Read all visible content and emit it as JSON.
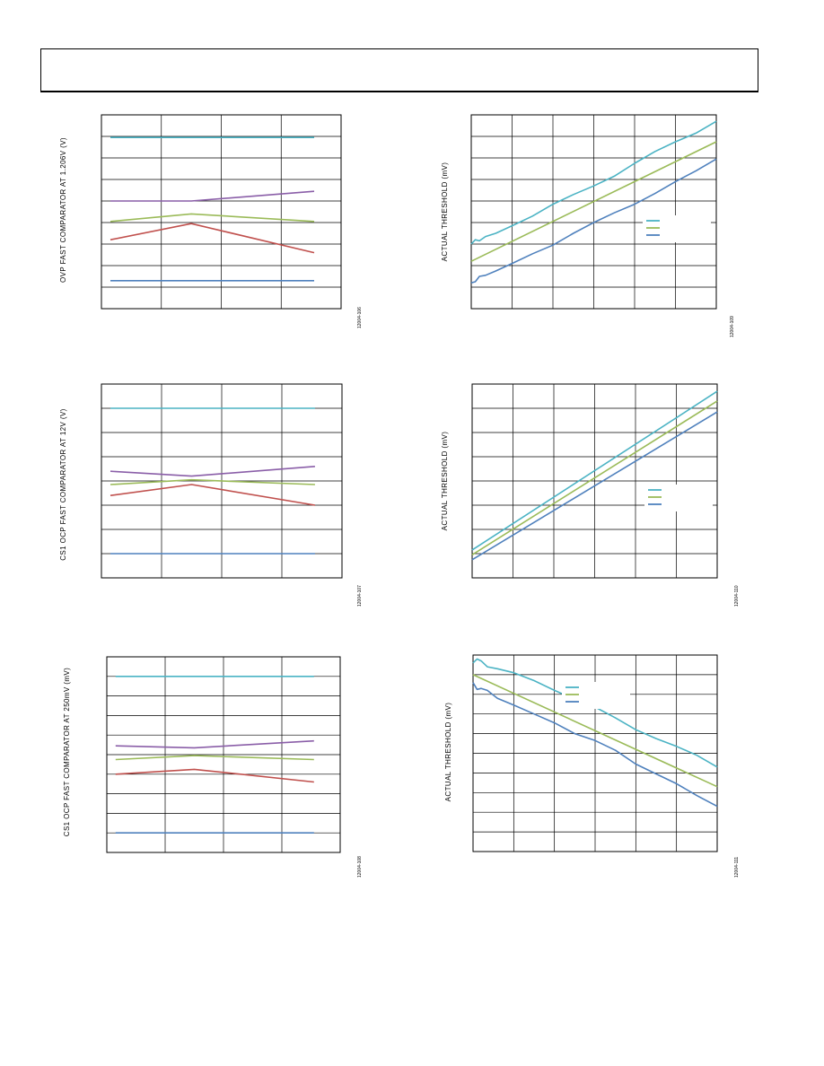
{
  "colors": {
    "teal": "#4bb3c4",
    "purple": "#8a5ea8",
    "green": "#9bbb59",
    "red": "#c0504d",
    "blue": "#4f81bd",
    "grid": "#000000"
  },
  "chart_data": [
    {
      "id": "chart1",
      "type": "line",
      "title": "",
      "xlabel": "",
      "ylabel": "OVP FAST COMPARATOR AT 1.206V (V)",
      "fig_code": "12004-106",
      "xlim": [
        0,
        4
      ],
      "ylim": [
        0,
        9
      ],
      "grid": {
        "x": 4,
        "y": 9
      },
      "legend": null,
      "series": [
        {
          "color": "teal",
          "x": [
            0.15,
            3.55
          ],
          "y": [
            7.95,
            7.95
          ]
        },
        {
          "color": "purple",
          "x": [
            0.15,
            1.5,
            3.55
          ],
          "y": [
            5.0,
            5.0,
            5.45
          ]
        },
        {
          "color": "green",
          "x": [
            0.15,
            1.5,
            3.55
          ],
          "y": [
            4.05,
            4.4,
            4.05
          ]
        },
        {
          "color": "red",
          "x": [
            0.15,
            1.5,
            3.55
          ],
          "y": [
            3.2,
            3.95,
            2.6
          ]
        },
        {
          "color": "blue",
          "x": [
            0.15,
            3.55
          ],
          "y": [
            1.3,
            1.3
          ]
        }
      ]
    },
    {
      "id": "chart2",
      "type": "line",
      "title": "",
      "xlabel": "",
      "ylabel": "ACTUAL THRESHOLD (mV)",
      "fig_code": "12004-109",
      "xlim": [
        0,
        6
      ],
      "ylim": [
        0,
        9
      ],
      "grid": {
        "x": 6,
        "y": 9
      },
      "legend": {
        "placement": "center-right",
        "entries": [
          "teal",
          "green",
          "blue"
        ]
      },
      "series": [
        {
          "color": "teal",
          "x": [
            0,
            0.1,
            0.2,
            0.35,
            0.6,
            1,
            1.5,
            2,
            2.5,
            3,
            3.5,
            4,
            4.5,
            5,
            5.5,
            6
          ],
          "y": [
            3.0,
            3.2,
            3.15,
            3.35,
            3.5,
            3.85,
            4.3,
            4.85,
            5.3,
            5.7,
            6.15,
            6.75,
            7.3,
            7.75,
            8.15,
            8.7
          ]
        },
        {
          "color": "green",
          "x": [
            0,
            6
          ],
          "y": [
            2.2,
            7.75
          ]
        },
        {
          "color": "blue",
          "x": [
            0,
            0.1,
            0.2,
            0.35,
            0.6,
            1,
            1.5,
            2,
            2.5,
            3,
            3.5,
            4,
            4.5,
            5,
            5.5,
            6
          ],
          "y": [
            1.2,
            1.25,
            1.5,
            1.55,
            1.75,
            2.1,
            2.55,
            2.95,
            3.5,
            4.0,
            4.45,
            4.85,
            5.35,
            5.9,
            6.4,
            6.95
          ]
        }
      ]
    },
    {
      "id": "chart3",
      "type": "line",
      "title": "",
      "xlabel": "",
      "ylabel": "CS1 OCP FAST COMPARATOR AT 12V (V)",
      "fig_code": "12004-107",
      "xlim": [
        0,
        4
      ],
      "ylim": [
        0,
        8
      ],
      "grid": {
        "x": 4,
        "y": 8
      },
      "legend": null,
      "series": [
        {
          "color": "teal",
          "x": [
            0.15,
            3.55
          ],
          "y": [
            7.0,
            7.0
          ]
        },
        {
          "color": "purple",
          "x": [
            0.15,
            1.5,
            3.55
          ],
          "y": [
            4.4,
            4.2,
            4.6
          ]
        },
        {
          "color": "green",
          "x": [
            0.15,
            1.5,
            3.55
          ],
          "y": [
            3.85,
            4.05,
            3.85
          ]
        },
        {
          "color": "red",
          "x": [
            0.15,
            1.5,
            3.55
          ],
          "y": [
            3.4,
            3.85,
            3.0
          ]
        },
        {
          "color": "blue",
          "x": [
            0.15,
            3.55
          ],
          "y": [
            1.0,
            1.0
          ]
        }
      ]
    },
    {
      "id": "chart4",
      "type": "line",
      "title": "",
      "xlabel": "",
      "ylabel": "ACTUAL THRESHOLD (mV)",
      "fig_code": "12004-110",
      "xlim": [
        0,
        6
      ],
      "ylim": [
        0,
        8
      ],
      "grid": {
        "x": 6,
        "y": 8
      },
      "legend": {
        "placement": "center-right",
        "entries": [
          "teal",
          "green",
          "blue"
        ]
      },
      "series": [
        {
          "color": "teal",
          "x": [
            0,
            6
          ],
          "y": [
            1.15,
            7.7
          ]
        },
        {
          "color": "green",
          "x": [
            0,
            6
          ],
          "y": [
            0.95,
            7.3
          ]
        },
        {
          "color": "blue",
          "x": [
            0,
            6
          ],
          "y": [
            0.75,
            6.85
          ]
        }
      ]
    },
    {
      "id": "chart5",
      "type": "line",
      "title": "",
      "xlabel": "",
      "ylabel": "CS1 OCP FAST COMPARATOR AT 250mV (mV)",
      "fig_code": "12004-108",
      "xlim": [
        0,
        4
      ],
      "ylim": [
        0,
        10
      ],
      "grid": {
        "x": 4,
        "y": 10
      },
      "legend": null,
      "series": [
        {
          "color": "teal",
          "x": [
            0.15,
            3.55
          ],
          "y": [
            9.0,
            9.0
          ]
        },
        {
          "color": "purple",
          "x": [
            0.15,
            1.5,
            3.55
          ],
          "y": [
            5.45,
            5.35,
            5.7
          ]
        },
        {
          "color": "green",
          "x": [
            0.15,
            1.5,
            3.55
          ],
          "y": [
            4.75,
            4.95,
            4.75
          ]
        },
        {
          "color": "red",
          "x": [
            0.15,
            1.5,
            3.55
          ],
          "y": [
            4.0,
            4.25,
            3.6
          ]
        },
        {
          "color": "blue",
          "x": [
            0.15,
            3.55
          ],
          "y": [
            1.0,
            1.0
          ]
        }
      ]
    },
    {
      "id": "chart6",
      "type": "line",
      "title": "",
      "xlabel": "",
      "ylabel": "ACTUAL THRESHOLD (mV)",
      "fig_code": "12004-111",
      "xlim": [
        0,
        6
      ],
      "ylim": [
        0,
        10
      ],
      "grid": {
        "x": 6,
        "y": 10
      },
      "legend": {
        "placement": "top-center",
        "entries": [
          "teal",
          "green",
          "blue"
        ]
      },
      "series": [
        {
          "color": "teal",
          "x": [
            0,
            0.1,
            0.2,
            0.35,
            0.6,
            1,
            1.5,
            2,
            2.5,
            3,
            3.5,
            4,
            4.5,
            5,
            5.5,
            6
          ],
          "y": [
            9.6,
            9.8,
            9.7,
            9.4,
            9.3,
            9.1,
            8.7,
            8.2,
            7.75,
            7.35,
            6.8,
            6.2,
            5.75,
            5.35,
            4.9,
            4.3
          ]
        },
        {
          "color": "green",
          "x": [
            0,
            6
          ],
          "y": [
            9.0,
            3.3
          ]
        },
        {
          "color": "blue",
          "x": [
            0,
            0.1,
            0.2,
            0.35,
            0.6,
            1,
            1.5,
            2,
            2.5,
            3,
            3.5,
            4,
            4.5,
            5,
            5.5,
            6
          ],
          "y": [
            8.6,
            8.25,
            8.3,
            8.2,
            7.8,
            7.45,
            7.0,
            6.55,
            6.0,
            5.65,
            5.15,
            4.45,
            3.95,
            3.45,
            2.85,
            2.3
          ]
        }
      ]
    }
  ]
}
